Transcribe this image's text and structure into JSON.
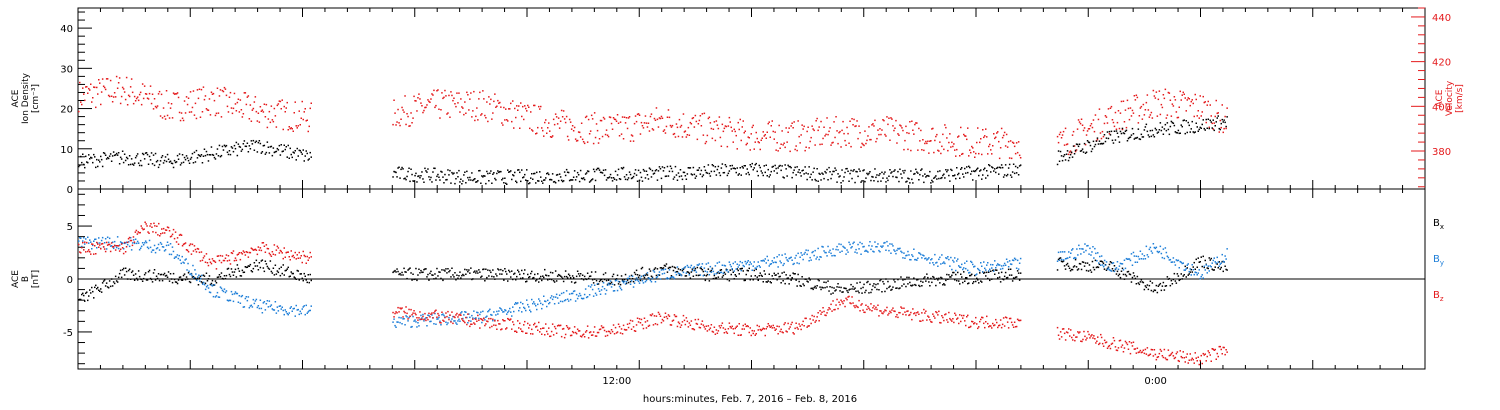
{
  "colors": {
    "axis": "#000000",
    "black": "#000000",
    "red": "#e41a1c",
    "blue": "#1f7fd8"
  },
  "chart_data": [
    {
      "type": "scatter",
      "panel": "top",
      "xlabel": "hours:minutes, Feb.  7, 2016 – Feb.  8, 2016",
      "x_range_hours": [
        0,
        30
      ],
      "x_ticks": [
        {
          "hour": 12,
          "label": "12:00"
        },
        {
          "hour": 24,
          "label": "0:00"
        }
      ],
      "y_left": {
        "label": [
          "ACE",
          "Ion Density",
          "[cm⁻³]"
        ],
        "ylim": [
          0,
          45
        ],
        "ticks": [
          0,
          10,
          20,
          30,
          40
        ],
        "color": "#000000"
      },
      "y_right": {
        "label": [
          "ACE",
          "Velocity",
          "[km/s]"
        ],
        "ylim": [
          363,
          444
        ],
        "ticks": [
          380,
          400,
          420,
          440
        ],
        "color": "#e41a1c"
      },
      "series": [
        {
          "axis": "left",
          "color": "#000000",
          "segments": [
            {
              "t": [
                0,
                1,
                2,
                3,
                4,
                5.2
              ],
              "y": [
                7,
                8,
                7,
                9,
                11,
                8
              ]
            },
            {
              "t": [
                7,
                9,
                11,
                13,
                15,
                17,
                19,
                21
              ],
              "y": [
                4,
                3,
                3.5,
                4,
                5,
                3.5,
                3.5,
                5
              ]
            },
            {
              "t": [
                21.8,
                23,
                24,
                25,
                25.6
              ],
              "y": [
                8,
                13,
                15,
                16,
                17
              ]
            }
          ]
        },
        {
          "axis": "right",
          "color": "#e41a1c",
          "segments": [
            {
              "t": [
                0,
                1,
                2,
                3,
                4,
                5.2
              ],
              "y": [
                405,
                408,
                400,
                403,
                398,
                395
              ]
            },
            {
              "t": [
                7,
                8,
                9,
                10,
                11,
                12,
                13,
                14,
                15,
                16,
                17,
                18,
                19,
                20,
                21
              ],
              "y": [
                397,
                401,
                401,
                395,
                391,
                390,
                394,
                390,
                387,
                387,
                389,
                389,
                386,
                384,
                384
              ]
            },
            {
              "t": [
                21.8,
                23,
                24,
                25,
                25.6
              ],
              "y": [
                383,
                395,
                402,
                400,
                393
              ]
            }
          ]
        }
      ]
    },
    {
      "type": "scatter",
      "panel": "bottom",
      "x_range_hours": [
        0,
        30
      ],
      "y_left": {
        "label": [
          "ACE",
          "B",
          "[nT]"
        ],
        "ylim": [
          -8.5,
          8.5
        ],
        "ticks": [
          -5,
          0,
          5
        ],
        "color": "#000000"
      },
      "legend": [
        {
          "name": "B",
          "sub": "x",
          "color": "#000000"
        },
        {
          "name": "B",
          "sub": "y",
          "color": "#1f7fd8"
        },
        {
          "name": "B",
          "sub": "z",
          "color": "#e41a1c"
        }
      ],
      "legend_position": "right",
      "series": [
        {
          "name": "Bx",
          "color": "#000000",
          "segments": [
            {
              "t": [
                0,
                1,
                2,
                3,
                4,
                5.2
              ],
              "y": [
                -2,
                0.5,
                0.3,
                0,
                1.5,
                0
              ]
            },
            {
              "t": [
                7,
                9,
                11,
                12,
                13,
                14,
                15,
                16,
                17,
                19,
                21
              ],
              "y": [
                0.5,
                0.5,
                0.3,
                0,
                1,
                0.5,
                0.5,
                0,
                -1,
                0,
                0.5
              ]
            },
            {
              "t": [
                21.8,
                23,
                24,
                25,
                25.6
              ],
              "y": [
                1.5,
                1.2,
                -1,
                1.8,
                1
              ]
            }
          ]
        },
        {
          "name": "By",
          "color": "#1f7fd8",
          "segments": [
            {
              "t": [
                0,
                1,
                2,
                2.5,
                3,
                4,
                5.2
              ],
              "y": [
                3.5,
                3.5,
                3,
                1,
                -1,
                -2.5,
                -3
              ]
            },
            {
              "t": [
                7,
                9,
                10,
                11,
                12,
                13,
                14,
                15,
                16,
                17,
                18,
                19,
                20,
                21
              ],
              "y": [
                -4,
                -3.5,
                -2.5,
                -1.5,
                -0.5,
                0.5,
                1,
                1.5,
                2,
                3,
                3,
                2,
                1,
                1.5
              ]
            },
            {
              "t": [
                21.8,
                22.5,
                23,
                24,
                25,
                25.6
              ],
              "y": [
                2,
                3,
                1,
                3,
                0.5,
                2.5
              ]
            }
          ]
        },
        {
          "name": "Bz",
          "color": "#e41a1c",
          "segments": [
            {
              "t": [
                0,
                1,
                1.5,
                2,
                3,
                4,
                5.2
              ],
              "y": [
                3,
                3,
                5,
                4.5,
                1.5,
                3,
                2
              ]
            },
            {
              "t": [
                7,
                9,
                10,
                11,
                12,
                13,
                14,
                15,
                16,
                17,
                18,
                19,
                20,
                21
              ],
              "y": [
                -3,
                -4,
                -4.5,
                -5,
                -4.8,
                -3.5,
                -4.5,
                -4.8,
                -4.5,
                -2,
                -3,
                -3.5,
                -4,
                -4
              ]
            },
            {
              "t": [
                21.8,
                22.5,
                23,
                24,
                25,
                25.6
              ],
              "y": [
                -5,
                -5.5,
                -6,
                -7,
                -7.5,
                -6.5
              ]
            }
          ]
        }
      ]
    }
  ]
}
